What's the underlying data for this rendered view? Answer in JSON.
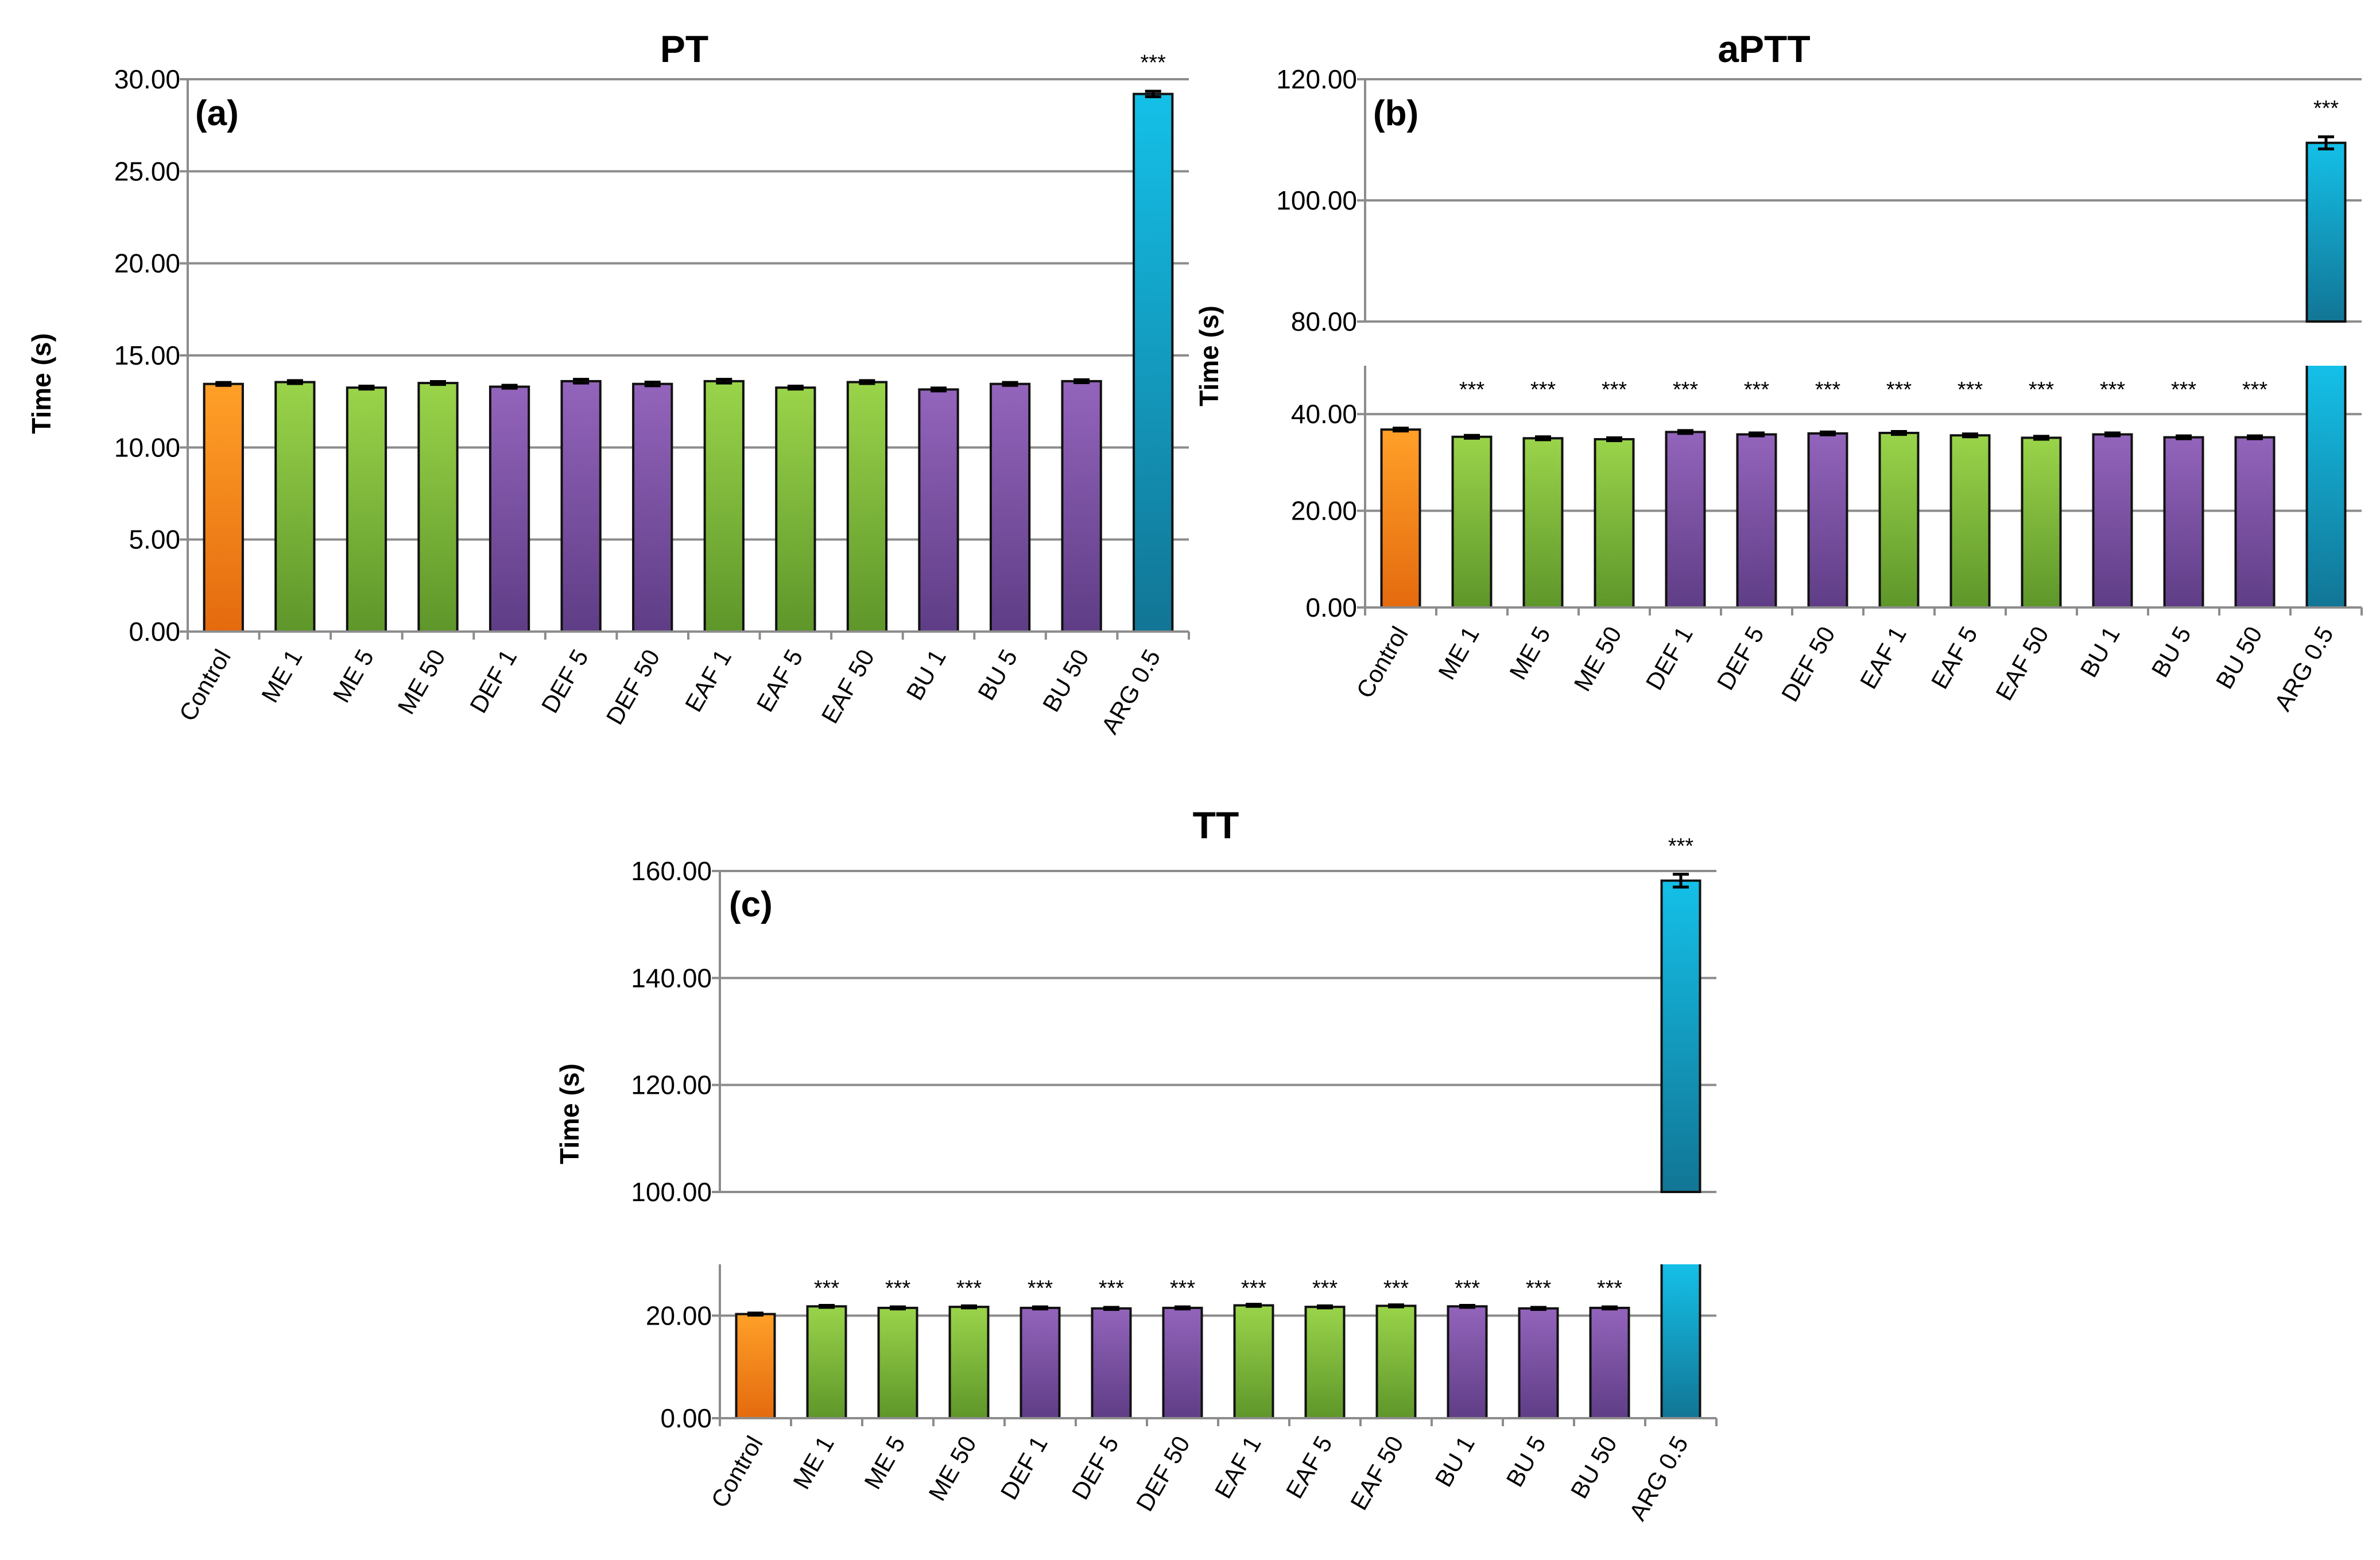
{
  "chart_data": [
    {
      "type": "bar",
      "title": "PT",
      "panel_label": "(a)",
      "xlabel": "",
      "ylabel": "Time (s)",
      "categories": [
        "Control",
        "ME 1",
        "ME 5",
        "ME 50",
        "DEF 1",
        "DEF 5",
        "DEF 50",
        "EAF 1",
        "EAF 5",
        "EAF 50",
        "BU 1",
        "BU 5",
        "BU 50",
        "ARG 0.5"
      ],
      "values": [
        13.45,
        13.55,
        13.25,
        13.5,
        13.3,
        13.6,
        13.45,
        13.6,
        13.25,
        13.55,
        13.15,
        13.45,
        13.6,
        29.2
      ],
      "errors": [
        0.08,
        0.08,
        0.08,
        0.08,
        0.08,
        0.1,
        0.1,
        0.1,
        0.08,
        0.08,
        0.08,
        0.08,
        0.08,
        0.15
      ],
      "significance": [
        "",
        "",
        "",
        "",
        "",
        "",
        "",
        "",
        "",
        "",
        "",
        "",
        "",
        "***"
      ],
      "bar_colors": [
        "orange",
        "green",
        "green",
        "green",
        "purple",
        "purple",
        "purple",
        "green",
        "green",
        "green",
        "purple",
        "purple",
        "purple",
        "cyan"
      ],
      "ylim": [
        0,
        30
      ],
      "yticks": [
        "0.00",
        "5.00",
        "10.00",
        "15.00",
        "20.00",
        "25.00",
        "30.00"
      ],
      "grid": true
    },
    {
      "type": "bar",
      "title": "aPTT",
      "panel_label": "(b)",
      "xlabel": "",
      "ylabel": "Time (s)",
      "categories": [
        "Control",
        "ME 1",
        "ME 5",
        "ME 50",
        "DEF 1",
        "DEF 5",
        "DEF 50",
        "EAF 1",
        "EAF 5",
        "EAF 50",
        "BU 1",
        "BU 5",
        "BU 50",
        "ARG 0.5"
      ],
      "values": [
        36.8,
        35.3,
        35.0,
        34.8,
        36.3,
        35.8,
        36.0,
        36.1,
        35.6,
        35.1,
        35.8,
        35.2,
        35.2,
        109.5
      ],
      "errors": [
        0.3,
        0.3,
        0.3,
        0.3,
        0.3,
        0.3,
        0.3,
        0.3,
        0.3,
        0.3,
        0.3,
        0.3,
        0.3,
        1.0
      ],
      "significance": [
        "",
        "***",
        "***",
        "***",
        "***",
        "***",
        "***",
        "***",
        "***",
        "***",
        "***",
        "***",
        "***",
        "***"
      ],
      "bar_colors": [
        "orange",
        "green",
        "green",
        "green",
        "purple",
        "purple",
        "purple",
        "green",
        "green",
        "green",
        "purple",
        "purple",
        "purple",
        "cyan"
      ],
      "axis_break": {
        "lower_ylim": [
          0,
          50
        ],
        "upper_ylim": [
          80,
          120
        ]
      },
      "yticks_lower": [
        "0.00",
        "20.00",
        "40.00"
      ],
      "yticks_upper": [
        "80.00",
        "100.00",
        "120.00"
      ],
      "grid": true
    },
    {
      "type": "bar",
      "title": "TT",
      "panel_label": "(c)",
      "xlabel": "",
      "ylabel": "Time (s)",
      "categories": [
        "Control",
        "ME 1",
        "ME 5",
        "ME 50",
        "DEF 1",
        "DEF 5",
        "DEF 50",
        "EAF 1",
        "EAF 5",
        "EAF 50",
        "BU 1",
        "BU 5",
        "BU 50",
        "ARG 0.5"
      ],
      "values": [
        20.3,
        21.8,
        21.5,
        21.7,
        21.5,
        21.4,
        21.5,
        22.0,
        21.7,
        21.9,
        21.8,
        21.4,
        21.5,
        158.2
      ],
      "errors": [
        0.2,
        0.2,
        0.2,
        0.2,
        0.2,
        0.2,
        0.2,
        0.2,
        0.2,
        0.2,
        0.2,
        0.2,
        0.2,
        1.2
      ],
      "significance": [
        "",
        "***",
        "***",
        "***",
        "***",
        "***",
        "***",
        "***",
        "***",
        "***",
        "***",
        "***",
        "***",
        "***"
      ],
      "bar_colors": [
        "orange",
        "green",
        "green",
        "green",
        "purple",
        "purple",
        "purple",
        "green",
        "green",
        "green",
        "purple",
        "purple",
        "purple",
        "cyan"
      ],
      "axis_break": {
        "lower_ylim": [
          0,
          30
        ],
        "upper_ylim": [
          100,
          160
        ]
      },
      "yticks_lower": [
        "0.00",
        "20.00"
      ],
      "yticks_upper": [
        "100.00",
        "120.00",
        "140.00",
        "160.00"
      ],
      "grid": true
    }
  ],
  "colors": {
    "orange": [
      "#ffa028",
      "#e46a0e"
    ],
    "green": [
      "#9ad44a",
      "#5e962a"
    ],
    "purple": [
      "#9364bb",
      "#5f3d86"
    ],
    "cyan": [
      "#14c0e8",
      "#127595"
    ]
  }
}
